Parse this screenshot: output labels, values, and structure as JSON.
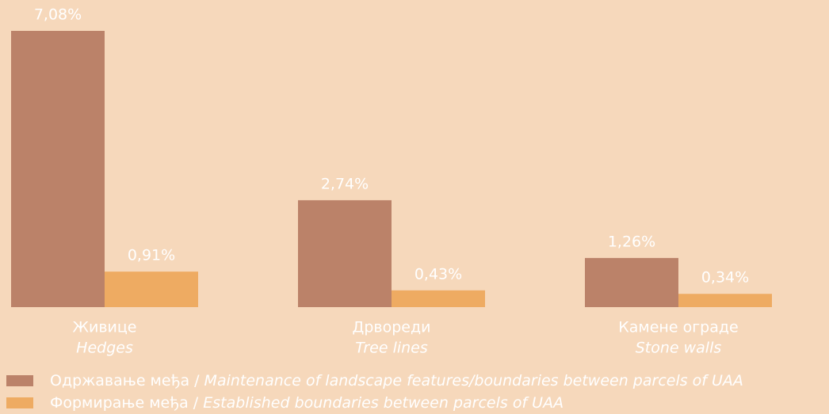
{
  "chart_data": {
    "type": "bar",
    "categories": [
      "Живице",
      "Дрвореди",
      "Камене ограде"
    ],
    "categories_en": [
      "Hedges",
      "Tree lines",
      "Stone walls"
    ],
    "series": [
      {
        "name": "Одржавање међа /",
        "name_en": "Maintenance of landscape features/boundaries between parcels of UAA",
        "color": "#bb8269",
        "values": [
          7.08,
          2.74,
          1.26
        ],
        "value_labels": [
          "7,08%",
          "2,74%",
          "1,26%"
        ]
      },
      {
        "name": "Формирање међа /",
        "name_en": "Established boundaries between parcels of UAA",
        "color": "#eeab62",
        "values": [
          0.91,
          0.43,
          0.34
        ],
        "value_labels": [
          "0,91%",
          "0,43%",
          "0,34%"
        ]
      }
    ]
  }
}
